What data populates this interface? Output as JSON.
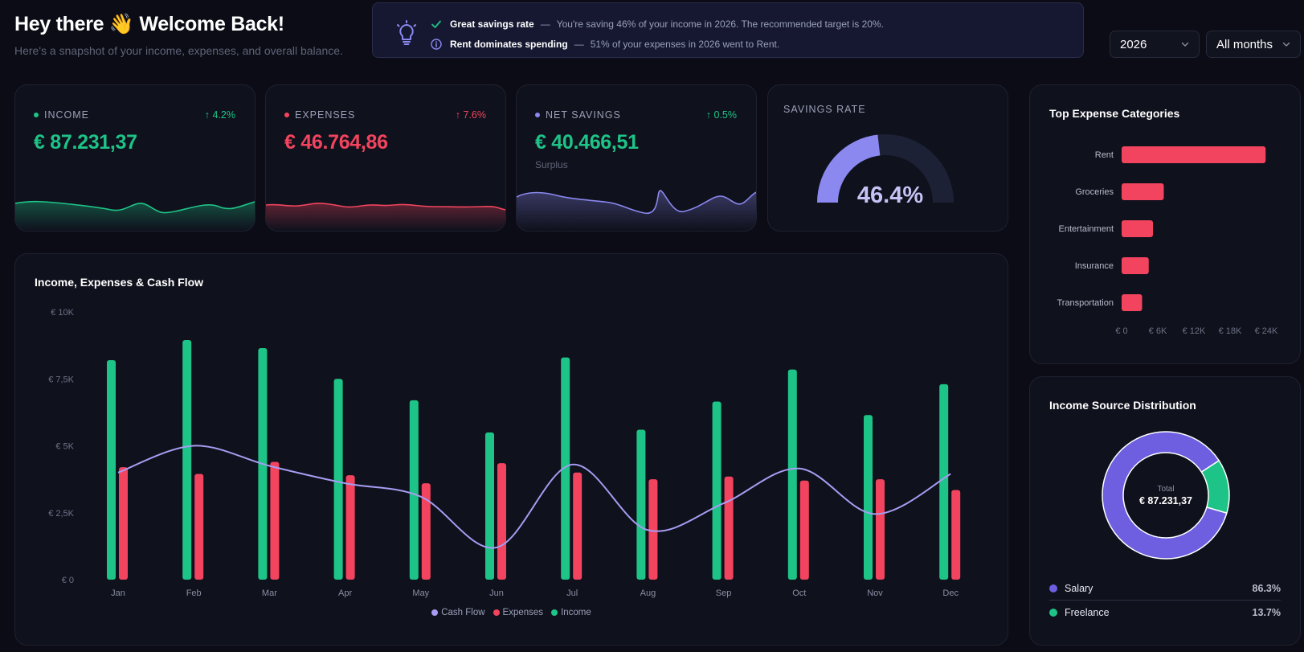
{
  "header": {
    "title": "Hey there 👋 Welcome Back!",
    "subtitle": "Here's a snapshot of your income, expenses, and overall balance."
  },
  "insights": [
    {
      "icon": "check-icon",
      "title": "Great savings rate",
      "dash": "—",
      "text": "You're saving 46% of your income in 2026. The recommended target is 20%."
    },
    {
      "icon": "info-icon",
      "title": "Rent dominates spending",
      "dash": "—",
      "text": "51% of your expenses in 2026 went to Rent."
    }
  ],
  "filters": {
    "year": "2026",
    "period": "All months"
  },
  "kpis": {
    "income": {
      "label": "INCOME",
      "trend": "↑ 4.2%",
      "value": "€ 87.231,37",
      "color": "#1ec487"
    },
    "expenses": {
      "label": "EXPENSES",
      "trend": "↑ 7.6%",
      "value": "€ 46.764,86",
      "color": "#f2445e"
    },
    "net_savings": {
      "label": "NET SAVINGS",
      "trend": "↑ 0.5%",
      "value": "€ 40.466,51",
      "sub": "Surplus",
      "color": "#8b88f0"
    }
  },
  "savings_rate": {
    "label": "SAVINGS RATE",
    "value": "46.4%",
    "fraction": 0.464
  },
  "main_chart": {
    "title": "Income, Expenses & Cash Flow",
    "y_ticks": [
      "€ 0",
      "€ 2,5K",
      "€ 5K",
      "€ 7,5K",
      "€ 10K"
    ],
    "legend": [
      "Cash Flow",
      "Expenses",
      "Income"
    ]
  },
  "top_expenses": {
    "title": "Top Expense Categories",
    "x_ticks": [
      "€ 0",
      "€ 6K",
      "€ 12K",
      "€ 18K",
      "€ 24K"
    ]
  },
  "income_distribution": {
    "title": "Income Source Distribution",
    "center_label": "Total",
    "center_value": "€ 87.231,37",
    "items": [
      {
        "name": "Salary",
        "pct": "86.3%",
        "color": "#6d5fe0"
      },
      {
        "name": "Freelance",
        "pct": "13.7%",
        "color": "#1ec487"
      }
    ]
  },
  "colors": {
    "income": "#1ec487",
    "expenses": "#f2445e",
    "cashflow": "#a79cf2",
    "accent": "#8b88f0"
  },
  "chart_data": [
    {
      "type": "bar",
      "title": "Income, Expenses & Cash Flow",
      "categories": [
        "Jan",
        "Feb",
        "Mar",
        "Apr",
        "May",
        "Jun",
        "Jul",
        "Aug",
        "Sep",
        "Oct",
        "Nov",
        "Dec"
      ],
      "series": [
        {
          "name": "Income",
          "type": "bar",
          "values": [
            8200,
            8950,
            8650,
            7500,
            6700,
            5500,
            8300,
            5600,
            6650,
            7850,
            6150,
            7300
          ]
        },
        {
          "name": "Expenses",
          "type": "bar",
          "values": [
            4200,
            3950,
            4400,
            3900,
            3600,
            4350,
            4000,
            3750,
            3850,
            3700,
            3750,
            3350
          ]
        },
        {
          "name": "Cash Flow",
          "type": "line",
          "values": [
            4000,
            5000,
            4250,
            3600,
            3100,
            1200,
            4300,
            1850,
            2850,
            4150,
            2450,
            3950
          ]
        }
      ],
      "ylim": [
        0,
        10000
      ],
      "grid": false,
      "legend": "bottom-center"
    },
    {
      "type": "bar",
      "orientation": "horizontal",
      "title": "Top Expense Categories",
      "categories": [
        "Rent",
        "Groceries",
        "Entertainment",
        "Insurance",
        "Transportation"
      ],
      "values": [
        23900,
        7000,
        5200,
        4500,
        3400
      ],
      "xlim": [
        0,
        24000
      ]
    },
    {
      "type": "pie",
      "title": "Income Source Distribution",
      "categories": [
        "Salary",
        "Freelance"
      ],
      "values": [
        86.3,
        13.7
      ]
    }
  ]
}
